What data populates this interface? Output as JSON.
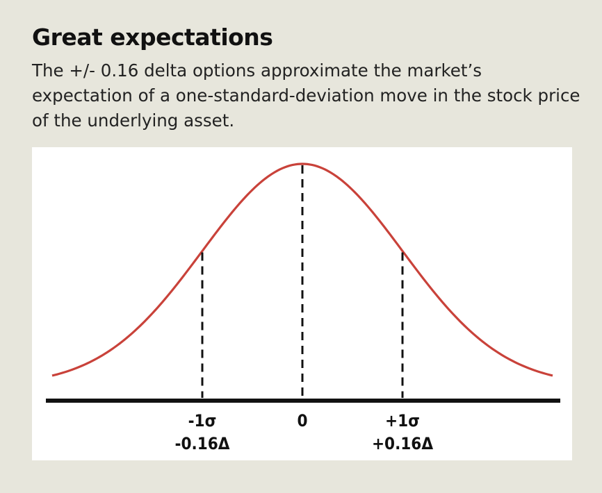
{
  "header": {
    "title": "Great expectations",
    "subtitle": "The +/- 0.16 delta options approximate the market’s expectation of a one-standard-deviation move in the stock price of the underlying asset."
  },
  "chart_data": {
    "type": "line",
    "title": "",
    "xlabel": "",
    "ylabel": "",
    "curve": "normal distribution",
    "xlim": [
      -2.5,
      2.5
    ],
    "x_ticks": [
      {
        "x": -1,
        "labels": [
          "-1σ",
          "-0.16Δ"
        ]
      },
      {
        "x": 0,
        "labels": [
          "0"
        ]
      },
      {
        "x": 1,
        "labels": [
          "+1σ",
          "+0.16Δ"
        ]
      }
    ],
    "markers": [
      -1,
      0,
      1
    ],
    "grid": false,
    "colors": {
      "curve": "#c9423a",
      "axis": "#111111",
      "markers": "#111111"
    }
  }
}
